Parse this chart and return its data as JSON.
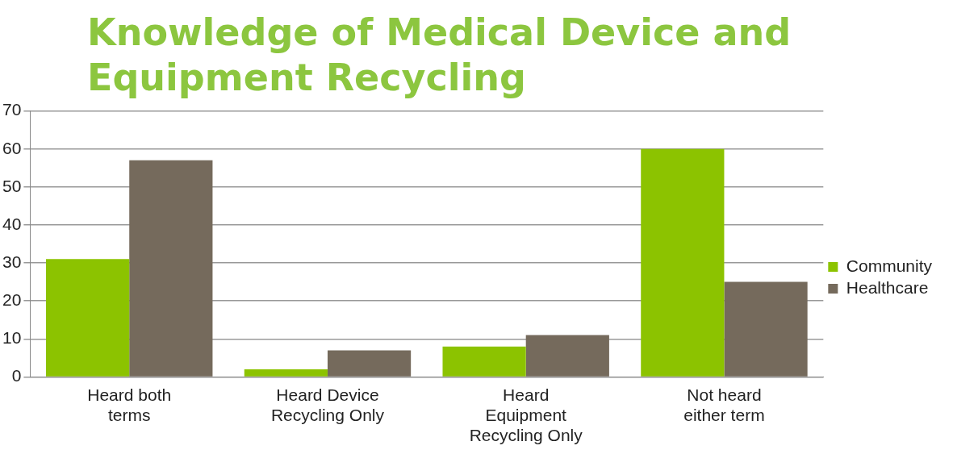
{
  "chart_data": {
    "type": "bar",
    "title": "Knowledge of Medical Device and Equipment Recycling",
    "categories": [
      "Heard both terms",
      "Heard Device Recycling Only",
      "Heard Equipment Recycling Only",
      "Not heard either term"
    ],
    "series": [
      {
        "name": "Community",
        "color": "#8cc300",
        "values": [
          31,
          2,
          8,
          60
        ]
      },
      {
        "name": "Healthcare",
        "color": "#756a5c",
        "values": [
          57,
          7,
          11,
          25
        ]
      }
    ],
    "ylim": [
      0,
      70
    ],
    "yticks": [
      0,
      10,
      20,
      30,
      40,
      50,
      60,
      70
    ],
    "grid": "y",
    "legend": "right"
  }
}
